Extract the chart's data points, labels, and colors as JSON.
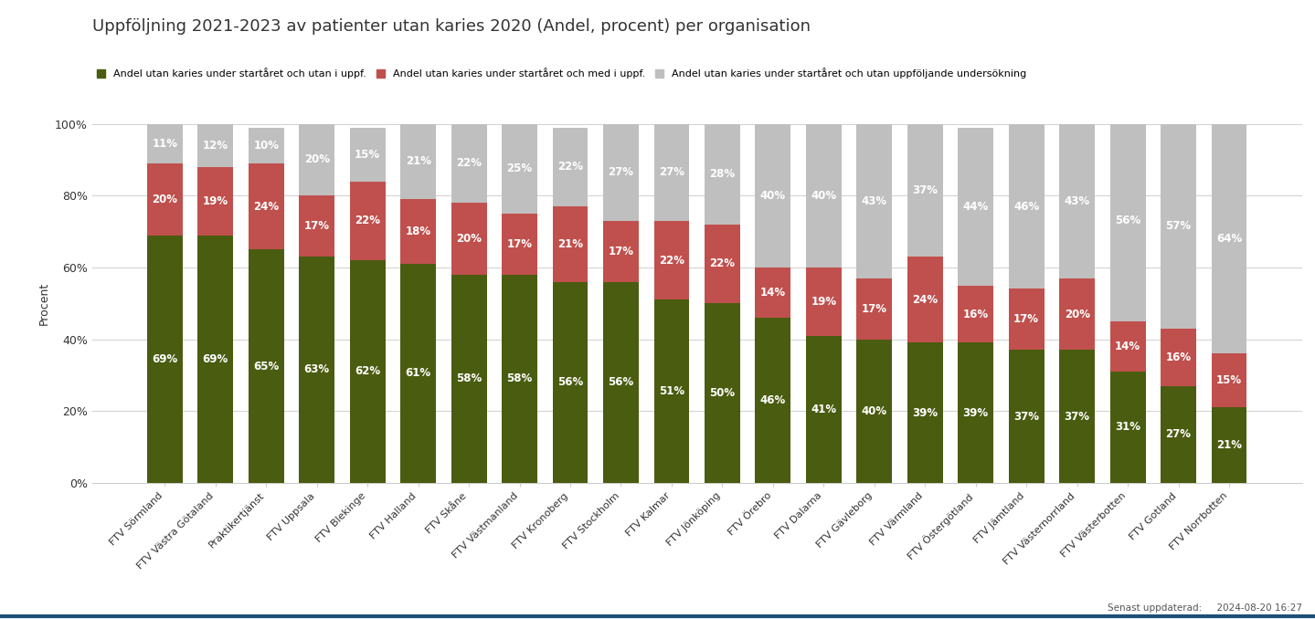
{
  "title": "Uppföljning 2021-2023 av patienter utan karies 2020 (Andel, procent) per organisation",
  "ylabel": "Procent",
  "categories": [
    "FTV Sörmland",
    "FTV Västra Götaland",
    "Praktikertjänst",
    "FTV Uppsala",
    "FTV Blekinge",
    "FTV Halland",
    "FTV Skåne",
    "FTV Västmanland",
    "FTV Kronoberg",
    "FTV Stockholm",
    "FTV Kalmar",
    "FTV Jönköping",
    "FTV Örebro",
    "FTV Dalarna",
    "FTV Gävleborg",
    "FTV Värmland",
    "FTV Östergötland",
    "FTV Jämtland",
    "FTV Västernorrland",
    "FTV Västerbotten",
    "FTV Gotland",
    "FTV Norrbotten"
  ],
  "green": [
    69,
    69,
    65,
    63,
    62,
    61,
    58,
    58,
    56,
    56,
    51,
    50,
    46,
    41,
    40,
    39,
    39,
    37,
    37,
    31,
    27,
    21
  ],
  "red": [
    20,
    19,
    24,
    17,
    22,
    18,
    20,
    17,
    21,
    17,
    22,
    22,
    14,
    19,
    17,
    24,
    16,
    17,
    20,
    14,
    16,
    15
  ],
  "gray": [
    11,
    12,
    10,
    20,
    15,
    21,
    22,
    25,
    22,
    27,
    27,
    28,
    40,
    40,
    43,
    37,
    44,
    46,
    43,
    56,
    57,
    64
  ],
  "color_green": "#4a5c10",
  "color_red": "#c0504d",
  "color_gray": "#c0bfbf",
  "legend_labels": [
    "Andel utan karies under startåret och utan i uppf.",
    "Andel utan karies under startåret och med i uppf.",
    "Andel utan karies under startåret och utan uppföljande undersökning"
  ],
  "footnote": "Senast uppdaterad:     2024-08-20 16:27",
  "background_color": "#ffffff",
  "title_fontsize": 13,
  "label_fontsize": 8.5,
  "tick_fontsize": 9,
  "ylim": [
    0,
    100
  ],
  "yticks": [
    0,
    20,
    40,
    60,
    80,
    100
  ],
  "ytick_labels": [
    "0%",
    "20%",
    "40%",
    "60%",
    "80%",
    "100%"
  ]
}
